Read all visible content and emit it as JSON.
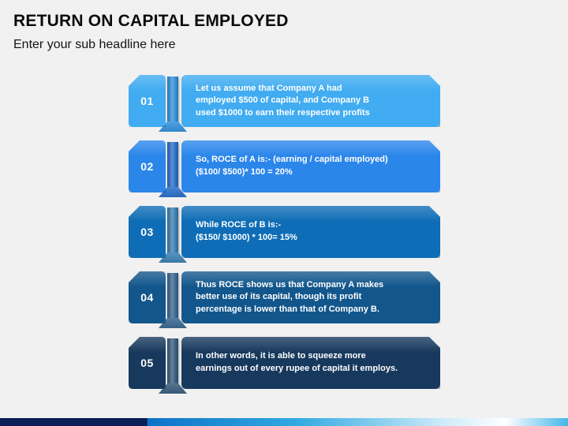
{
  "header": {
    "title": "RETURN ON CAPITAL EMPLOYED",
    "subtitle": "Enter your sub headline here"
  },
  "steps": [
    {
      "number": "01",
      "text": "Let us assume that Company A had\nemployed $500 of capital, and Company B\nused $1000 to earn their respective profits",
      "colors": {
        "box": "#41acf1",
        "post": "#3796df"
      }
    },
    {
      "number": "02",
      "text": "So, ROCE of A is:- (earning / capital employed)\n($100/ $500)* 100 = 20%",
      "colors": {
        "box": "#2b86ea",
        "post": "#2d74ce"
      }
    },
    {
      "number": "03",
      "text": "While ROCE of B is:-\n($150/ $1000) * 100= 15%",
      "colors": {
        "box": "#0e6db6",
        "post": "#3f85b8"
      }
    },
    {
      "number": "04",
      "text": "Thus ROCE shows us that Company A makes\nbetter use of its capital, though its profit\npercentage is lower than that of Company B.",
      "colors": {
        "box": "#12568c",
        "post": "#3e6c96"
      }
    },
    {
      "number": "05",
      "text": "In other words, it is able to squeeze more\nearnings out of every rupee of capital it employs.",
      "colors": {
        "box": "#17395d",
        "post": "#3c6283"
      }
    }
  ],
  "footer": {
    "colors": {
      "navy": "#0a1f55",
      "blue": "#0e72c8",
      "cyan": "#2fa9e2",
      "light": "#cdebf8",
      "white": "#ffffff",
      "right_blue": "#44b6e9"
    }
  }
}
